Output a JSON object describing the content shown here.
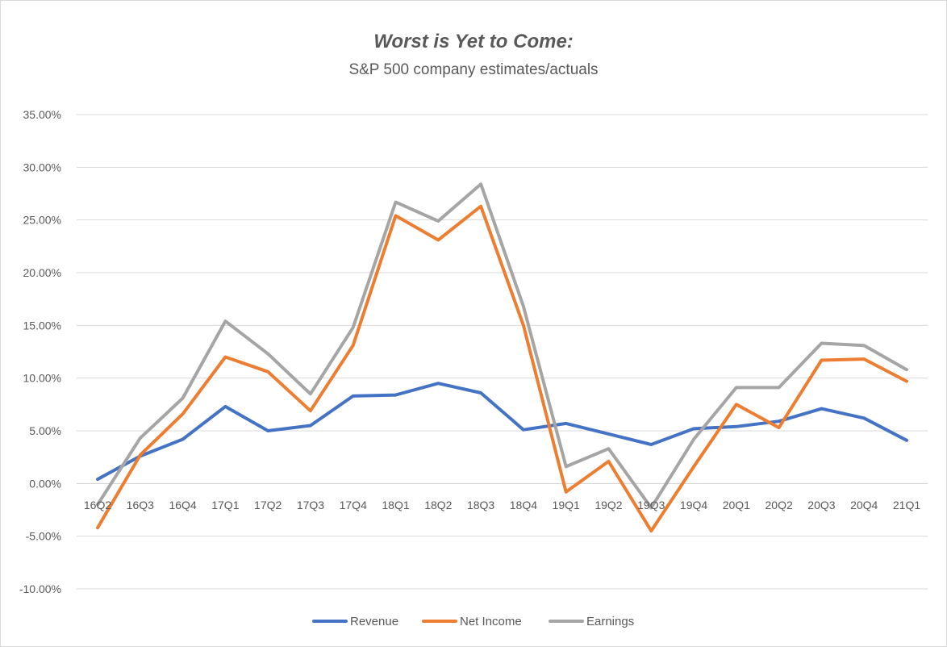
{
  "chart_data": {
    "type": "line",
    "title": "Worst is Yet to Come:",
    "subtitle": "S&P 500 company estimates/actuals",
    "xlabel": "",
    "ylabel": "",
    "categories": [
      "16Q2",
      "16Q3",
      "16Q4",
      "17Q1",
      "17Q2",
      "17Q3",
      "17Q4",
      "18Q1",
      "18Q2",
      "18Q3",
      "18Q4",
      "19Q1",
      "19Q2",
      "19Q3",
      "19Q4",
      "20Q1",
      "20Q2",
      "20Q3",
      "20Q4",
      "21Q1"
    ],
    "ylim": [
      -10,
      35
    ],
    "yticks": [
      35,
      30,
      25,
      20,
      15,
      10,
      5,
      0,
      -5,
      -10
    ],
    "ytick_labels": [
      "35.00%",
      "30.00%",
      "25.00%",
      "20.00%",
      "15.00%",
      "10.00%",
      "5.00%",
      "0.00%",
      "-5.00%",
      "-10.00%"
    ],
    "grid": true,
    "legend_position": "bottom",
    "series": [
      {
        "name": "Revenue",
        "color": "#4472c4",
        "values": [
          0.4,
          2.6,
          4.2,
          7.3,
          5.0,
          5.5,
          8.3,
          8.4,
          9.5,
          8.6,
          5.1,
          5.7,
          4.7,
          3.7,
          5.2,
          5.4,
          5.9,
          7.1,
          6.2,
          4.1
        ]
      },
      {
        "name": "Net Income",
        "color": "#ed7d31",
        "values": [
          -4.2,
          2.7,
          6.6,
          12.0,
          10.6,
          6.9,
          13.1,
          25.4,
          23.1,
          26.3,
          15.0,
          -0.8,
          2.1,
          -4.5,
          1.6,
          7.5,
          5.3,
          11.7,
          11.8,
          9.7
        ]
      },
      {
        "name": "Earnings",
        "color": "#a5a5a5",
        "values": [
          -2.0,
          4.3,
          8.1,
          15.4,
          12.3,
          8.5,
          14.8,
          26.7,
          24.9,
          28.4,
          16.8,
          1.6,
          3.3,
          -2.3,
          4.2,
          9.1,
          9.1,
          13.3,
          13.1,
          10.8
        ]
      }
    ]
  }
}
